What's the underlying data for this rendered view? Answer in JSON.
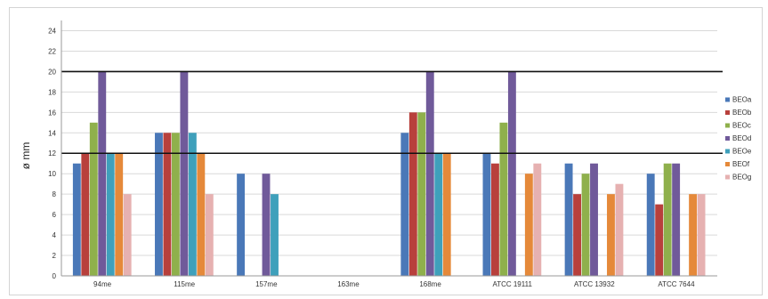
{
  "chart_data": {
    "type": "bar",
    "title": "",
    "xlabel": "",
    "ylabel": "ø mm",
    "ylim": [
      0,
      25
    ],
    "yticks": [
      0,
      2,
      4,
      6,
      8,
      10,
      12,
      14,
      16,
      18,
      20,
      22,
      24
    ],
    "grid": true,
    "legend_position": "right",
    "reference_lines": [
      12,
      20
    ],
    "categories": [
      "94me",
      "115me",
      "157me",
      "163me",
      "168me",
      "ATCC 19111",
      "ATCC 13932",
      "ATCC 7644"
    ],
    "series": [
      {
        "name": "BEOa",
        "color": "#4a78b8",
        "values": [
          11,
          14,
          10,
          0,
          14,
          12,
          11,
          10
        ]
      },
      {
        "name": "BEOb",
        "color": "#b8403c",
        "values": [
          12,
          14,
          0,
          0,
          16,
          11,
          8,
          7
        ]
      },
      {
        "name": "BEOc",
        "color": "#8fb04c",
        "values": [
          15,
          14,
          0,
          0,
          16,
          15,
          10,
          11
        ]
      },
      {
        "name": "BEOd",
        "color": "#705a9a",
        "values": [
          20,
          20,
          10,
          0,
          20,
          20,
          11,
          11
        ]
      },
      {
        "name": "BEOe",
        "color": "#3fa0bb",
        "values": [
          12,
          14,
          8,
          0,
          12,
          0,
          0,
          0
        ]
      },
      {
        "name": "BEOf",
        "color": "#e5893a",
        "values": [
          12,
          12,
          0,
          0,
          12,
          10,
          8,
          8
        ]
      },
      {
        "name": "BEOg",
        "color": "#e6b1b1",
        "values": [
          8,
          8,
          0,
          0,
          0,
          11,
          9,
          8
        ]
      }
    ]
  }
}
